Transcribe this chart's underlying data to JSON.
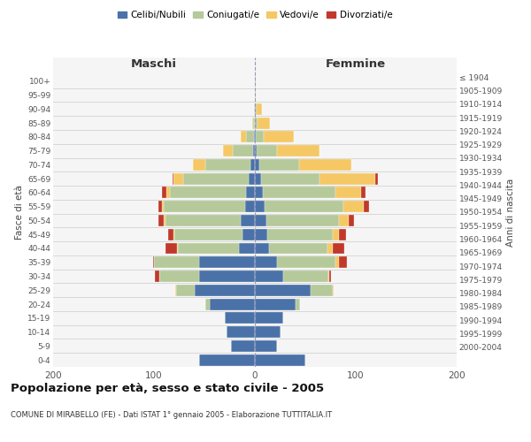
{
  "age_groups": [
    "0-4",
    "5-9",
    "10-14",
    "15-19",
    "20-24",
    "25-29",
    "30-34",
    "35-39",
    "40-44",
    "45-49",
    "50-54",
    "55-59",
    "60-64",
    "65-69",
    "70-74",
    "75-79",
    "80-84",
    "85-89",
    "90-94",
    "95-99",
    "100+"
  ],
  "birth_years": [
    "2000-2004",
    "1995-1999",
    "1990-1994",
    "1985-1989",
    "1980-1984",
    "1975-1979",
    "1970-1974",
    "1965-1969",
    "1960-1964",
    "1955-1959",
    "1950-1954",
    "1945-1949",
    "1940-1944",
    "1935-1939",
    "1930-1934",
    "1925-1929",
    "1920-1924",
    "1915-1919",
    "1910-1914",
    "1905-1909",
    "≤ 1904"
  ],
  "male": {
    "celibi": [
      55,
      24,
      28,
      30,
      45,
      60,
      55,
      55,
      16,
      12,
      14,
      10,
      9,
      6,
      4,
      2,
      1,
      0,
      0,
      0,
      0
    ],
    "coniugati": [
      0,
      0,
      0,
      0,
      4,
      18,
      40,
      45,
      60,
      68,
      75,
      80,
      75,
      65,
      45,
      20,
      8,
      2,
      1,
      0,
      0
    ],
    "vedovi": [
      0,
      0,
      0,
      0,
      0,
      1,
      0,
      0,
      1,
      1,
      1,
      2,
      4,
      10,
      12,
      10,
      5,
      1,
      0,
      0,
      0
    ],
    "divorziati": [
      0,
      0,
      0,
      0,
      0,
      0,
      4,
      1,
      12,
      5,
      6,
      4,
      4,
      1,
      0,
      0,
      0,
      0,
      0,
      0,
      0
    ]
  },
  "female": {
    "nubili": [
      50,
      22,
      25,
      28,
      40,
      55,
      28,
      22,
      14,
      12,
      11,
      10,
      8,
      6,
      4,
      2,
      1,
      0,
      0,
      0,
      0
    ],
    "coniugate": [
      0,
      0,
      0,
      0,
      5,
      22,
      45,
      58,
      58,
      65,
      72,
      78,
      72,
      58,
      40,
      20,
      8,
      3,
      2,
      0,
      0
    ],
    "vedove": [
      0,
      0,
      0,
      0,
      0,
      1,
      1,
      3,
      5,
      6,
      10,
      20,
      25,
      55,
      52,
      42,
      30,
      12,
      5,
      1,
      1
    ],
    "divorziate": [
      0,
      0,
      0,
      0,
      0,
      0,
      1,
      8,
      12,
      7,
      5,
      5,
      5,
      3,
      0,
      0,
      0,
      0,
      0,
      0,
      0
    ]
  },
  "colors": {
    "celibi": "#4a72a8",
    "coniugati": "#b5c99a",
    "vedovi": "#f5c865",
    "divorziati": "#c0392b"
  },
  "title": "Popolazione per età, sesso e stato civile - 2005",
  "subtitle": "COMUNE DI MIRABELLO (FE) - Dati ISTAT 1° gennaio 2005 - Elaborazione TUTTITALIA.IT",
  "xlabel_left": "Maschi",
  "xlabel_right": "Femmine",
  "ylabel_left": "Fasce di età",
  "ylabel_right": "Anni di nascita",
  "xlim": 200,
  "bg_color": "#ffffff",
  "plot_bg_color": "#f5f5f5"
}
